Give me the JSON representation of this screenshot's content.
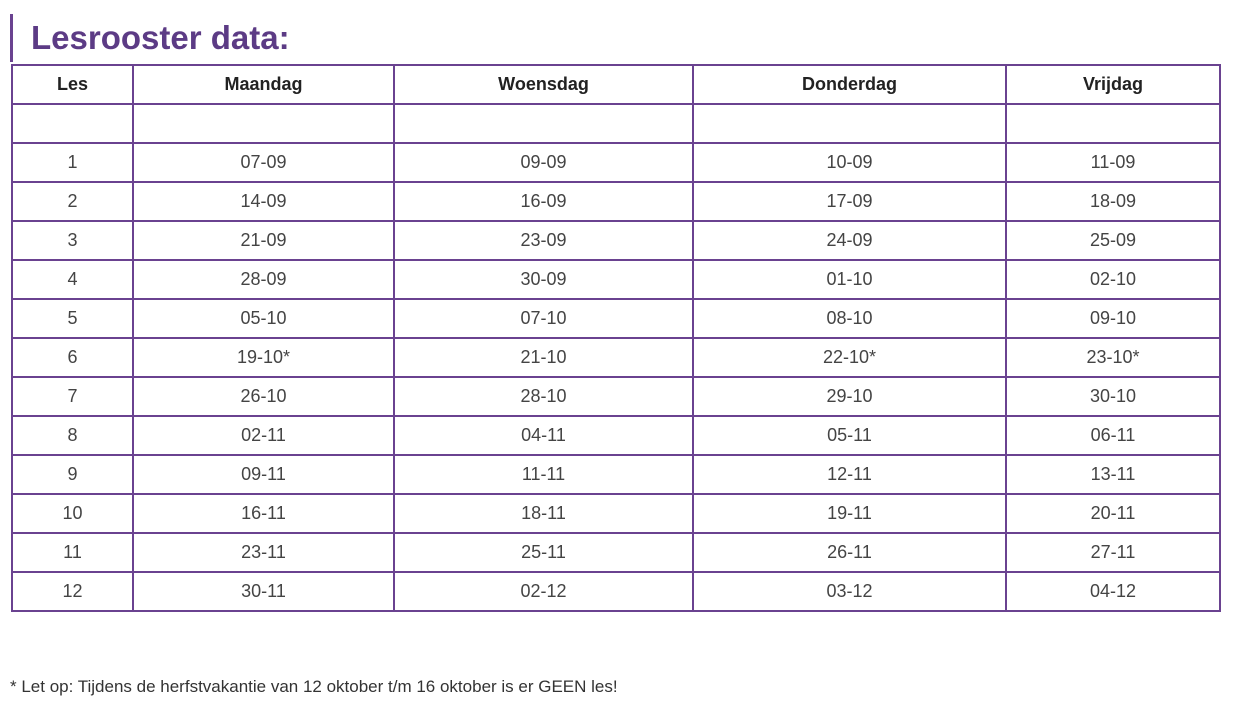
{
  "title": "Lesrooster data:",
  "table": {
    "header": [
      "Les",
      "Maandag",
      "Woensdag",
      "Donderdag",
      "Vrijdag"
    ],
    "rows": [
      [
        "1",
        "07-09",
        "09-09",
        "10-09",
        "11-09"
      ],
      [
        "2",
        "14-09",
        "16-09",
        "17-09",
        "18-09"
      ],
      [
        "3",
        "21-09",
        "23-09",
        "24-09",
        "25-09"
      ],
      [
        "4",
        "28-09",
        "30-09",
        "01-10",
        "02-10"
      ],
      [
        "5",
        "05-10",
        "07-10",
        "08-10",
        "09-10"
      ],
      [
        "6",
        "19-10*",
        "21-10",
        "22-10*",
        "23-10*"
      ],
      [
        "7",
        "26-10",
        "28-10",
        "29-10",
        "30-10"
      ],
      [
        "8",
        "02-11",
        "04-11",
        "05-11",
        "06-11"
      ],
      [
        "9",
        "09-11",
        "11-11",
        "12-11",
        "13-11"
      ],
      [
        "10",
        "16-11",
        "18-11",
        "19-11",
        "20-11"
      ],
      [
        "11",
        "23-11",
        "25-11",
        "26-11",
        "27-11"
      ],
      [
        "12",
        "30-11",
        "02-12",
        "03-12",
        "04-12"
      ]
    ]
  },
  "footnote": "* Let op: Tijdens de herfstvakantie van 12 oktober t/m 16 oktober is er GEEN les!"
}
